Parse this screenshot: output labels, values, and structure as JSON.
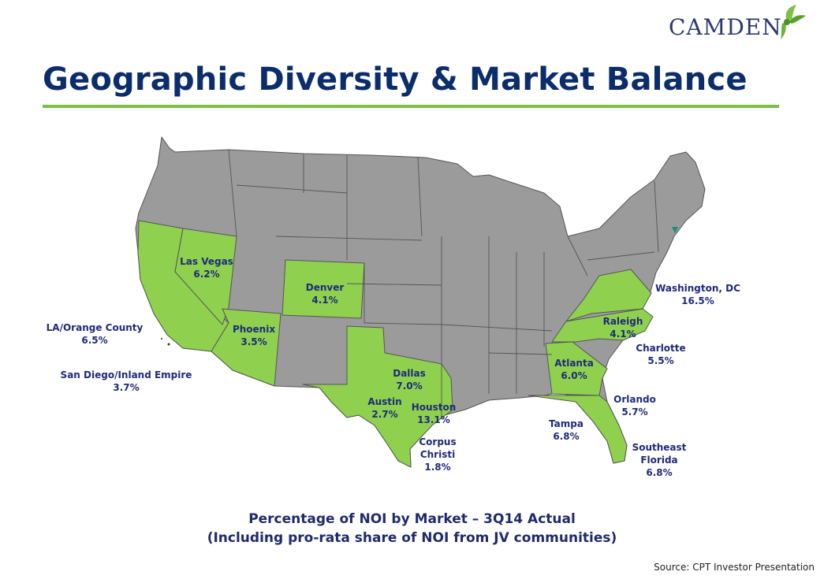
{
  "header": {
    "logo_text": "CAMDEN",
    "title": "Geographic Diversity & Market Balance"
  },
  "colors": {
    "title": "#0b2d6b",
    "accent_rule": "#7bc143",
    "market_state": "#8fd14f",
    "other_state": "#9b9b9b",
    "label": "#1f2a7a"
  },
  "markets": [
    {
      "name": "Las Vegas",
      "share": "6.2%"
    },
    {
      "name": "Denver",
      "share": "4.1%"
    },
    {
      "name": "Phoenix",
      "share": "3.5%"
    },
    {
      "name": "LA/Orange County",
      "share": "6.5%"
    },
    {
      "name": "San Diego/Inland Empire",
      "share": "3.7%"
    },
    {
      "name": "Dallas",
      "share": "7.0%"
    },
    {
      "name": "Austin",
      "share": "2.7%"
    },
    {
      "name": "Houston",
      "share": "13.1%"
    },
    {
      "name": "Corpus Christi",
      "share": "1.8%"
    },
    {
      "name": "Washington, DC",
      "share": "16.5%"
    },
    {
      "name": "Raleigh",
      "share": "4.1%"
    },
    {
      "name": "Charlotte",
      "share": "5.5%"
    },
    {
      "name": "Atlanta",
      "share": "6.0%"
    },
    {
      "name": "Orlando",
      "share": "5.7%"
    },
    {
      "name": "Tampa",
      "share": "6.8%"
    },
    {
      "name": "Southeast Florida",
      "share": "6.8%"
    }
  ],
  "caption": {
    "line1": "Percentage of NOI by Market – 3Q14 Actual",
    "line2": "(Including pro-rata share of NOI from JV communities)"
  },
  "source": "Source: CPT Investor Presentation"
}
